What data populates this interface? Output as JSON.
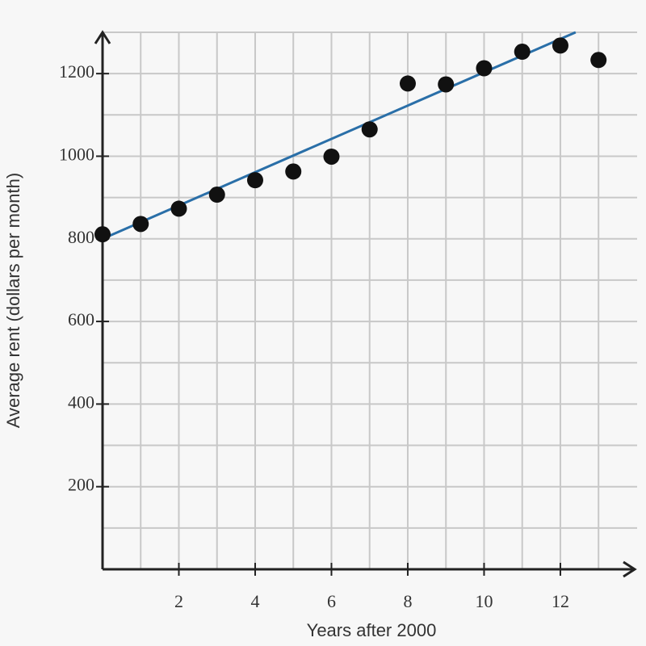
{
  "chart_data": {
    "type": "scatter",
    "x_label": "Years after 2000",
    "y_label": "Average rent (dollars per month)",
    "x": [
      0,
      1,
      2,
      3,
      4,
      5,
      6,
      7,
      8,
      9,
      10,
      11,
      12,
      13
    ],
    "values": [
      811,
      836,
      873,
      907,
      942,
      963,
      999,
      1065,
      1176,
      1174,
      1213,
      1253,
      1268,
      1233
    ],
    "color": "#111111",
    "trend_line": {
      "x": [
        0,
        12.4
      ],
      "values": [
        800,
        1300
      ],
      "color": "#2a6fa8"
    },
    "xlim": [
      0,
      13.8
    ],
    "ylim": [
      0,
      1300
    ],
    "xticks": [
      2,
      4,
      6,
      8,
      10,
      12
    ],
    "yticks": [
      200,
      400,
      600,
      800,
      1000,
      1200
    ],
    "xgrid": [
      1,
      2,
      3,
      4,
      5,
      6,
      7,
      8,
      9,
      10,
      11,
      12,
      13
    ],
    "ygrid": [
      100,
      200,
      300,
      400,
      500,
      600,
      700,
      800,
      900,
      1000,
      1100,
      1200,
      1300
    ],
    "grid": true
  }
}
